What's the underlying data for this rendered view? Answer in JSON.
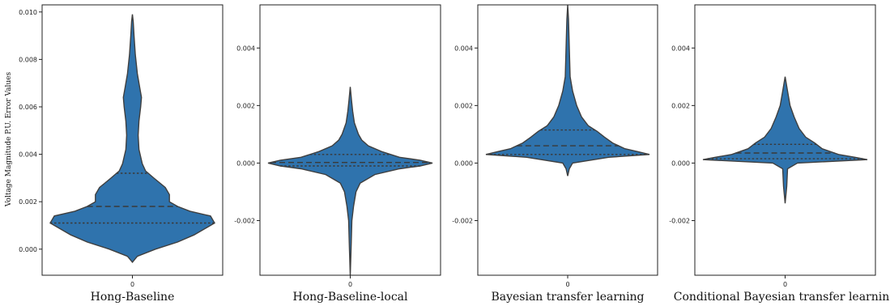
{
  "chart_data": {
    "type": "violin",
    "ylabel": "Voltage Magnitude P.U. Error Values",
    "fill_color": "#2f73ad",
    "panels": [
      {
        "xlabel": "Hong-Baseline",
        "xtick": "0",
        "ylim": [
          -0.0011,
          0.0103
        ],
        "yticks": [
          0.0,
          0.002,
          0.004,
          0.006,
          0.008,
          0.01
        ],
        "ytick_labels": [
          "0.000",
          "0.002",
          "0.004",
          "0.006",
          "0.008",
          "0.010"
        ],
        "min": -0.00055,
        "max": 0.0099,
        "quartiles": [
          0.0011,
          0.0018,
          0.0032
        ],
        "profile": [
          [
            -0.00055,
            0.0
          ],
          [
            -0.0003,
            0.06
          ],
          [
            0.0,
            0.28
          ],
          [
            0.0003,
            0.55
          ],
          [
            0.0006,
            0.75
          ],
          [
            0.0009,
            0.9
          ],
          [
            0.0011,
            1.0
          ],
          [
            0.0014,
            0.95
          ],
          [
            0.0016,
            0.7
          ],
          [
            0.0018,
            0.55
          ],
          [
            0.002,
            0.45
          ],
          [
            0.0023,
            0.45
          ],
          [
            0.0026,
            0.4
          ],
          [
            0.003,
            0.26
          ],
          [
            0.0033,
            0.16
          ],
          [
            0.0036,
            0.12
          ],
          [
            0.0042,
            0.08
          ],
          [
            0.0048,
            0.07
          ],
          [
            0.0054,
            0.08
          ],
          [
            0.006,
            0.1
          ],
          [
            0.0064,
            0.11
          ],
          [
            0.0068,
            0.09
          ],
          [
            0.0074,
            0.06
          ],
          [
            0.0082,
            0.035
          ],
          [
            0.009,
            0.02
          ],
          [
            0.0096,
            0.01
          ],
          [
            0.0099,
            0.0
          ]
        ]
      },
      {
        "xlabel": "Hong-Baseline-local",
        "xtick": "0",
        "ylim": [
          -0.0039,
          0.0055
        ],
        "yticks": [
          -0.002,
          0.0,
          0.002,
          0.004
        ],
        "ytick_labels": [
          "-0.002",
          "0.000",
          "0.002",
          "0.004"
        ],
        "min": -0.0039,
        "max": 0.00265,
        "quartiles": [
          -0.0001,
          2e-05,
          0.0003
        ],
        "profile": [
          [
            -0.0039,
            0.0
          ],
          [
            -0.003,
            0.01
          ],
          [
            -0.002,
            0.02
          ],
          [
            -0.0015,
            0.04
          ],
          [
            -0.001,
            0.07
          ],
          [
            -0.0007,
            0.12
          ],
          [
            -0.0004,
            0.3
          ],
          [
            -0.0002,
            0.6
          ],
          [
            -0.0001,
            0.85
          ],
          [
            0.0,
            1.0
          ],
          [
            0.0001,
            0.85
          ],
          [
            0.0002,
            0.6
          ],
          [
            0.0004,
            0.38
          ],
          [
            0.0006,
            0.22
          ],
          [
            0.0008,
            0.14
          ],
          [
            0.001,
            0.1
          ],
          [
            0.0014,
            0.05
          ],
          [
            0.0018,
            0.03
          ],
          [
            0.0022,
            0.015
          ],
          [
            0.00265,
            0.0
          ]
        ]
      },
      {
        "xlabel": "Bayesian transfer learning",
        "xtick": "0",
        "ylim": [
          -0.0039,
          0.0055
        ],
        "yticks": [
          -0.002,
          0.0,
          0.002,
          0.004
        ],
        "ytick_labels": [
          "-0.002",
          "0.000",
          "0.002",
          "0.004"
        ],
        "min": -0.00045,
        "max": 0.0055,
        "quartiles": [
          0.0003,
          0.0006,
          0.00115
        ],
        "profile": [
          [
            -0.00045,
            0.0
          ],
          [
            -0.0002,
            0.02
          ],
          [
            0.0,
            0.06
          ],
          [
            0.0002,
            0.5
          ],
          [
            0.0003,
            1.0
          ],
          [
            0.0004,
            0.85
          ],
          [
            0.0005,
            0.7
          ],
          [
            0.0007,
            0.55
          ],
          [
            0.0009,
            0.45
          ],
          [
            0.0011,
            0.36
          ],
          [
            0.0013,
            0.25
          ],
          [
            0.0016,
            0.17
          ],
          [
            0.002,
            0.11
          ],
          [
            0.0025,
            0.06
          ],
          [
            0.003,
            0.03
          ],
          [
            0.004,
            0.02
          ],
          [
            0.005,
            0.01
          ],
          [
            0.0055,
            0.0
          ]
        ]
      },
      {
        "xlabel": "Conditional Bayesian transfer learning",
        "xtick": "0",
        "ylim": [
          -0.0039,
          0.0055
        ],
        "yticks": [
          -0.002,
          0.0,
          0.002,
          0.004
        ],
        "ytick_labels": [
          "-0.002",
          "0.000",
          "0.002",
          "0.004"
        ],
        "min": -0.0014,
        "max": 0.003,
        "quartiles": [
          0.00015,
          0.00035,
          0.00065
        ],
        "profile": [
          [
            -0.0014,
            0.0
          ],
          [
            -0.0008,
            0.02
          ],
          [
            -0.0002,
            0.03
          ],
          [
            0.0,
            0.15
          ],
          [
            0.00012,
            1.0
          ],
          [
            0.0002,
            0.85
          ],
          [
            0.0003,
            0.65
          ],
          [
            0.0005,
            0.45
          ],
          [
            0.0007,
            0.36
          ],
          [
            0.0009,
            0.25
          ],
          [
            0.0012,
            0.17
          ],
          [
            0.0016,
            0.11
          ],
          [
            0.002,
            0.06
          ],
          [
            0.0025,
            0.03
          ],
          [
            0.003,
            0.0
          ]
        ]
      }
    ]
  }
}
